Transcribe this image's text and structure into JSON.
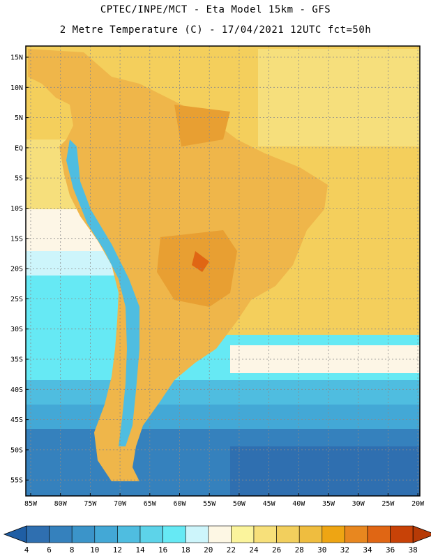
{
  "title": {
    "line1": "CPTEC/INPE/MCT -  Eta Model 15km - GFS",
    "line2": "2 Metre Temperature (C) - 17/04/2021 12UTC fct=50h"
  },
  "map": {
    "lat_labels": [
      "15N",
      "10N",
      "5N",
      "EQ",
      "5S",
      "10S",
      "15S",
      "20S",
      "25S",
      "30S",
      "35S",
      "40S",
      "45S",
      "50S",
      "55S"
    ],
    "lon_labels": [
      "85W",
      "80W",
      "75W",
      "70W",
      "65W",
      "60W",
      "55W",
      "50W",
      "45W",
      "40W",
      "35W",
      "30W",
      "25W",
      "20W"
    ]
  },
  "colorbar": {
    "levels": [
      "4",
      "6",
      "8",
      "10",
      "12",
      "14",
      "16",
      "18",
      "20",
      "22",
      "24",
      "26",
      "28",
      "30",
      "32",
      "34",
      "36",
      "38"
    ],
    "colors": [
      "#2f6fb0",
      "#3581bd",
      "#3b94c9",
      "#43a8d6",
      "#4fbde0",
      "#5dd3e9",
      "#66e9f4",
      "#cdf5fb",
      "#fdf7e4",
      "#fbf49c",
      "#f7e07a",
      "#f2cf5d",
      "#efbd3f",
      "#eea513",
      "#e8871f",
      "#e06614",
      "#c84207"
    ],
    "low_arrow_color": "#1f5ea4",
    "high_arrow_color": "#b63a06"
  }
}
